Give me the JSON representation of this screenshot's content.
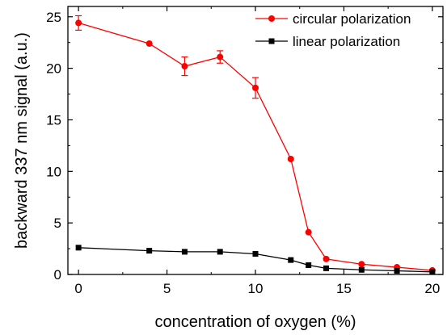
{
  "chart_data": {
    "type": "line",
    "title": "",
    "xlabel": "concentration of oxygen (%)",
    "ylabel": "backward 337 nm signal (a.u.)",
    "xlim": [
      -0.6,
      20.6
    ],
    "ylim": [
      0,
      26
    ],
    "xticks": [
      0,
      5,
      10,
      15,
      20
    ],
    "yticks": [
      0,
      5,
      10,
      15,
      20,
      25
    ],
    "grid": false,
    "legend": "top-right",
    "series": [
      {
        "name": "circular polarization",
        "color": "#ff0000",
        "marker": "circle",
        "x": [
          0,
          4,
          6,
          8,
          10,
          12,
          13,
          14,
          16,
          18,
          20
        ],
        "y": [
          24.4,
          22.4,
          20.2,
          21.1,
          18.1,
          11.2,
          4.1,
          1.5,
          1.0,
          0.7,
          0.4
        ],
        "err": [
          0.7,
          0,
          0.9,
          0.6,
          1.0,
          0,
          0,
          0,
          0,
          0,
          0
        ]
      },
      {
        "name": "linear polarization",
        "color": "#000000",
        "marker": "square",
        "x": [
          0,
          4,
          6,
          8,
          10,
          12,
          13,
          14,
          16,
          18,
          20
        ],
        "y": [
          2.6,
          2.3,
          2.2,
          2.2,
          2.0,
          1.4,
          0.9,
          0.6,
          0.45,
          0.35,
          0.25
        ],
        "err": [
          0,
          0,
          0,
          0,
          0,
          0,
          0,
          0,
          0,
          0,
          0
        ]
      }
    ]
  }
}
